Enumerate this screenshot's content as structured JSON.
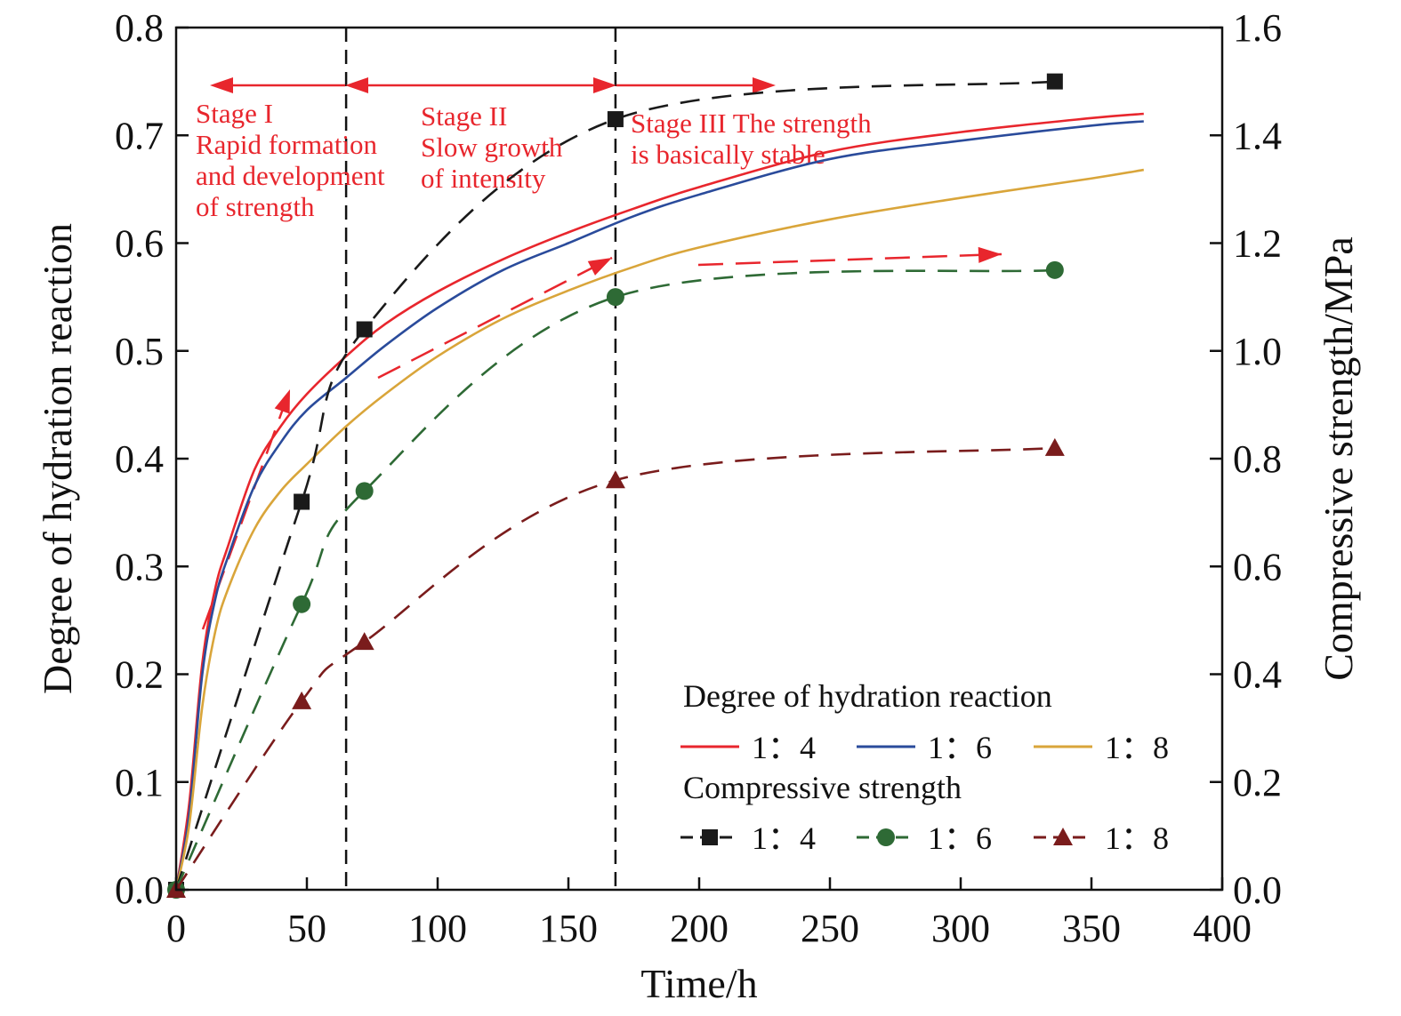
{
  "chart_data": {
    "type": "line",
    "xlabel": "Time/h",
    "ylabel_left": "Degree of hydration reaction",
    "ylabel_right": "Compressive strength/MPa",
    "xlim": [
      0,
      400
    ],
    "ylim_left": [
      0,
      0.8
    ],
    "ylim_right": [
      0,
      1.6
    ],
    "x_ticks": [
      "0",
      "50",
      "100",
      "150",
      "200",
      "250",
      "300",
      "350",
      "400"
    ],
    "y_left_ticks": [
      "0.0",
      "0.1",
      "0.2",
      "0.3",
      "0.4",
      "0.5",
      "0.6",
      "0.7",
      "0.8"
    ],
    "y_right_ticks": [
      "0.0",
      "0.2",
      "0.4",
      "0.6",
      "0.8",
      "1.0",
      "1.2",
      "1.4",
      "1.6"
    ],
    "grid": false,
    "legend_placement": "bottom-right",
    "legend": {
      "group1_title": "Degree of hydration reaction",
      "group2_title": "Compressive strength",
      "labels": [
        "1：4",
        "1：6",
        "1：8"
      ]
    },
    "hydration_series": [
      {
        "name": "1：4",
        "color": "#e8262d",
        "x": [
          0,
          5,
          10,
          15,
          20,
          30,
          40,
          50,
          65,
          80,
          100,
          125,
          150,
          175,
          200,
          250,
          300,
          350,
          370
        ],
        "y": [
          0.0,
          0.08,
          0.21,
          0.28,
          0.32,
          0.39,
          0.43,
          0.46,
          0.495,
          0.525,
          0.555,
          0.585,
          0.61,
          0.632,
          0.652,
          0.685,
          0.703,
          0.716,
          0.72
        ]
      },
      {
        "name": "1：6",
        "color": "#2a4b9b",
        "x": [
          0,
          5,
          10,
          15,
          20,
          30,
          40,
          50,
          65,
          80,
          100,
          125,
          150,
          175,
          200,
          250,
          300,
          350,
          370
        ],
        "y": [
          0.0,
          0.07,
          0.2,
          0.27,
          0.31,
          0.375,
          0.415,
          0.445,
          0.475,
          0.505,
          0.54,
          0.575,
          0.6,
          0.625,
          0.645,
          0.678,
          0.695,
          0.709,
          0.713
        ]
      },
      {
        "name": "1：8",
        "color": "#d9a53a",
        "x": [
          0,
          5,
          10,
          15,
          20,
          30,
          40,
          50,
          65,
          80,
          100,
          125,
          150,
          175,
          200,
          250,
          300,
          350,
          370
        ],
        "y": [
          0.0,
          0.06,
          0.17,
          0.24,
          0.28,
          0.335,
          0.37,
          0.395,
          0.43,
          0.46,
          0.495,
          0.53,
          0.556,
          0.578,
          0.596,
          0.622,
          0.642,
          0.66,
          0.668
        ]
      }
    ],
    "strength_series": [
      {
        "name": "1：4",
        "color": "#1a1a1a",
        "marker": "square",
        "x": [
          0,
          48,
          72,
          168,
          336
        ],
        "y": [
          0.0,
          0.72,
          1.04,
          1.43,
          1.5
        ]
      },
      {
        "name": "1：6",
        "color": "#2e6a35",
        "marker": "circle",
        "x": [
          0,
          48,
          72,
          168,
          336
        ],
        "y": [
          0.0,
          0.53,
          0.74,
          1.1,
          1.15
        ]
      },
      {
        "name": "1：8",
        "color": "#7a1c1c",
        "marker": "triangle",
        "x": [
          0,
          48,
          72,
          168,
          336
        ],
        "y": [
          0.0,
          0.35,
          0.46,
          0.76,
          0.82
        ]
      }
    ],
    "stage_boundaries_x": [
      65,
      168
    ],
    "stage_annotations": [
      {
        "lines": [
          "Stage I",
          "Rapid formation",
          "and development",
          "of strength"
        ],
        "color": "#e8262d"
      },
      {
        "lines": [
          "Stage II",
          "Slow growth",
          "of intensity"
        ],
        "color": "#e8262d"
      },
      {
        "lines": [
          "Stage III The strength",
          "is basically stable"
        ],
        "color": "#e8262d"
      }
    ],
    "annotation_color": "#e8262d"
  }
}
